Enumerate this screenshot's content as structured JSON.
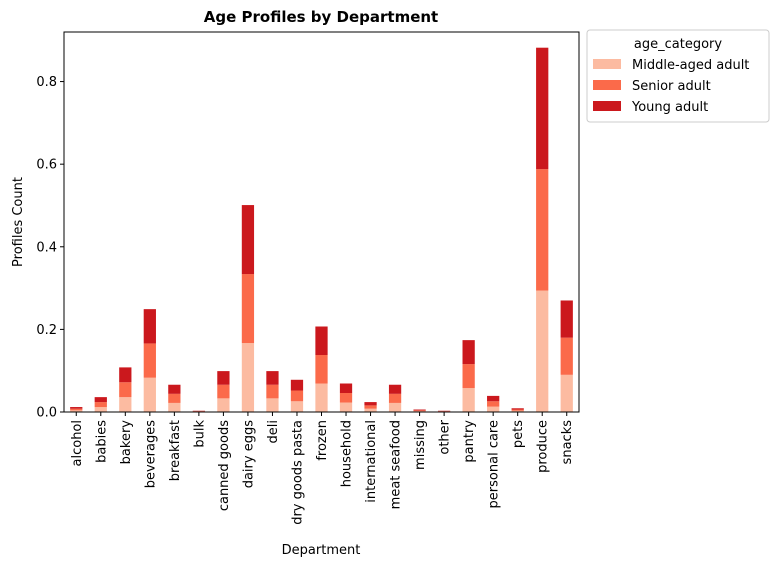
{
  "chart_data": {
    "type": "bar",
    "stacked": true,
    "title": "Age Profiles by Department",
    "xlabel": "Department",
    "ylabel": "Profiles Count",
    "ylim": [
      0,
      0.92
    ],
    "yticks": [
      0.0,
      0.2,
      0.4,
      0.6,
      0.8
    ],
    "ytick_labels": [
      "0.0",
      "0.2",
      "0.4",
      "0.6",
      "0.8"
    ],
    "grid": false,
    "legend_title": "age_category",
    "legend_position": "outside top-right",
    "categories": [
      "alcohol",
      "babies",
      "bakery",
      "beverages",
      "breakfast",
      "bulk",
      "canned goods",
      "dairy eggs",
      "deli",
      "dry goods pasta",
      "frozen",
      "household",
      "international",
      "meat seafood",
      "missing",
      "other",
      "pantry",
      "personal care",
      "pets",
      "produce",
      "snacks"
    ],
    "series": [
      {
        "name": "Middle-aged adult",
        "color": "#fcbba1",
        "values": [
          0.004,
          0.012,
          0.036,
          0.083,
          0.022,
          0.001,
          0.033,
          0.167,
          0.033,
          0.026,
          0.069,
          0.023,
          0.008,
          0.022,
          0.002,
          0.001,
          0.058,
          0.013,
          0.003,
          0.294,
          0.09
        ]
      },
      {
        "name": "Senior adult",
        "color": "#fb6a4a",
        "values": [
          0.004,
          0.012,
          0.036,
          0.083,
          0.022,
          0.001,
          0.033,
          0.167,
          0.033,
          0.026,
          0.069,
          0.023,
          0.008,
          0.022,
          0.002,
          0.001,
          0.058,
          0.013,
          0.003,
          0.294,
          0.09
        ]
      },
      {
        "name": "Young adult",
        "color": "#cb181d",
        "values": [
          0.004,
          0.012,
          0.036,
          0.083,
          0.022,
          0.001,
          0.033,
          0.167,
          0.033,
          0.026,
          0.069,
          0.023,
          0.008,
          0.022,
          0.002,
          0.001,
          0.058,
          0.013,
          0.003,
          0.294,
          0.09
        ]
      }
    ]
  }
}
